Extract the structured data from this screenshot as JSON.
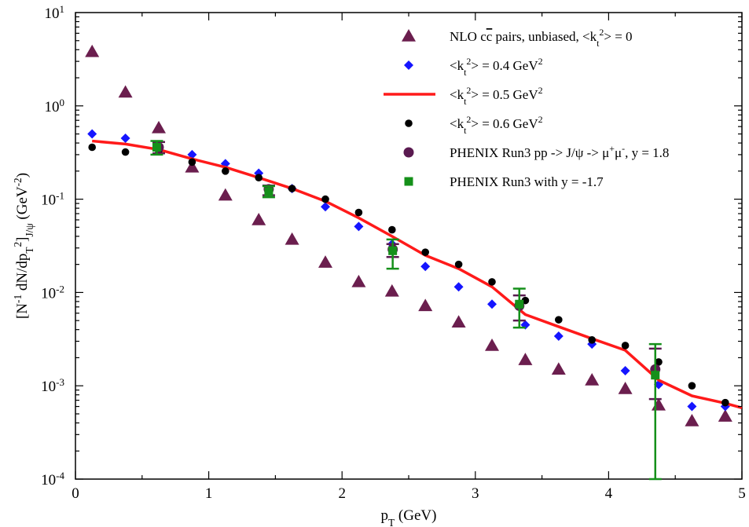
{
  "chart_data": {
    "type": "scatter",
    "xlabel": "pT (GeV)",
    "ylabel": "[N-1 dN/dpT2]J/ψ (GeV-2)",
    "xlim": [
      0,
      5
    ],
    "ylim": [
      0.0001,
      10
    ],
    "y_scale": "log",
    "grid": false,
    "legend_position": "top-right",
    "x_ticks": [
      0,
      1,
      2,
      3,
      4,
      5
    ],
    "y_ticks": [
      0.0001,
      0.001,
      0.01,
      0.1,
      1,
      10
    ],
    "x_tick_labels": [
      "0",
      "1",
      "2",
      "3",
      "4",
      "5"
    ],
    "y_tick_labels": [
      {
        "base": "10",
        "exp": "-4"
      },
      {
        "base": "10",
        "exp": "-3"
      },
      {
        "base": "10",
        "exp": "-2"
      },
      {
        "base": "10",
        "exp": "-1"
      },
      {
        "base": "10",
        "exp": "0"
      },
      {
        "base": "10",
        "exp": "1"
      }
    ],
    "series": [
      {
        "name": "NLO cc̄ pairs, unbiased, <kt2> = 0",
        "marker": "triangle",
        "color": "#6b1e4e",
        "x": [
          0.125,
          0.375,
          0.625,
          0.875,
          1.125,
          1.375,
          1.625,
          1.875,
          2.125,
          2.375,
          2.625,
          2.875,
          3.125,
          3.375,
          3.625,
          3.875,
          4.125,
          4.375,
          4.625,
          4.875
        ],
        "y": [
          3.8,
          1.4,
          0.58,
          0.22,
          0.11,
          0.06,
          0.037,
          0.021,
          0.013,
          0.0103,
          0.0072,
          0.0048,
          0.0027,
          0.0019,
          0.0015,
          0.00115,
          0.00093,
          0.00062,
          0.00042,
          0.00047
        ]
      },
      {
        "name": "<kt2> = 0.4 GeV2",
        "marker": "diamond",
        "color": "#1515ff",
        "x": [
          0.125,
          0.375,
          0.625,
          0.875,
          1.125,
          1.375,
          1.625,
          1.875,
          2.125,
          2.375,
          2.625,
          2.875,
          3.125,
          3.375,
          3.625,
          3.875,
          4.125,
          4.375,
          4.625,
          4.875
        ],
        "y": [
          0.5,
          0.45,
          0.36,
          0.3,
          0.24,
          0.19,
          0.13,
          0.083,
          0.051,
          0.033,
          0.019,
          0.0115,
          0.0075,
          0.0045,
          0.0034,
          0.0028,
          0.00145,
          0.00103,
          0.0006,
          0.0006
        ]
      },
      {
        "name": "<kt2> = 0.5 GeV2",
        "marker": "line",
        "color": "#ff1a1a",
        "x": [
          0.125,
          0.375,
          0.625,
          0.875,
          1.125,
          1.375,
          1.625,
          1.875,
          2.125,
          2.375,
          2.625,
          2.875,
          3.125,
          3.375,
          3.625,
          3.875,
          4.125,
          4.375,
          4.625,
          4.875,
          5.0
        ],
        "y": [
          0.42,
          0.39,
          0.34,
          0.27,
          0.22,
          0.17,
          0.13,
          0.095,
          0.063,
          0.04,
          0.025,
          0.018,
          0.0115,
          0.0058,
          0.0043,
          0.0032,
          0.0024,
          0.00115,
          0.00078,
          0.00065,
          0.00058
        ]
      },
      {
        "name": "<kt2> = 0.6 GeV2",
        "marker": "circle-small",
        "color": "#000000",
        "x": [
          0.125,
          0.375,
          0.625,
          0.875,
          1.125,
          1.375,
          1.625,
          1.875,
          2.125,
          2.375,
          2.625,
          2.875,
          3.125,
          3.375,
          3.625,
          3.875,
          4.125,
          4.375,
          4.625,
          4.875
        ],
        "y": [
          0.36,
          0.32,
          0.33,
          0.25,
          0.2,
          0.17,
          0.13,
          0.1,
          0.072,
          0.047,
          0.027,
          0.02,
          0.013,
          0.0082,
          0.0051,
          0.0031,
          0.0027,
          0.0018,
          0.001,
          0.00066
        ]
      },
      {
        "name": "PHENIX Run3 pp -> J/ψ -> μ+μ-, y = 1.8",
        "marker": "circle-large",
        "color": "#5a1a50",
        "x": [
          0.625,
          1.45,
          2.38,
          3.33,
          4.35
        ],
        "y": [
          0.36,
          0.128,
          0.029,
          0.0072,
          0.0015
        ],
        "y_low": [
          0.31,
          0.11,
          0.024,
          0.005,
          0.00072
        ],
        "y_high": [
          0.41,
          0.14,
          0.033,
          0.0093,
          0.0025
        ]
      },
      {
        "name": "PHENIX Run3 with y = -1.7",
        "marker": "square",
        "color": "#15901a",
        "x": [
          0.61,
          1.45,
          2.38,
          3.33,
          4.35
        ],
        "y": [
          0.36,
          0.12,
          0.028,
          0.0075,
          0.0013
        ],
        "y_low": [
          0.3,
          0.105,
          0.018,
          0.0042,
          0.0001
        ],
        "y_high": [
          0.42,
          0.138,
          0.037,
          0.011,
          0.0028
        ]
      }
    ]
  },
  "axis_titles": {
    "x": {
      "p": "p",
      "sub": "T",
      "rest": " (GeV)"
    },
    "y": {
      "a": "[N",
      "a_sup": "-1",
      "b": " dN/dp",
      "b_sub": "T",
      "b_sup": "2",
      "c": "]",
      "c_sub": "J/ψ",
      "d": " (GeV",
      "d_sup": "-2",
      "e": ")"
    }
  },
  "legend": [
    {
      "series": 0,
      "parts": [
        [
          "t",
          "NLO c"
        ],
        [
          "t",
          "c"
        ],
        [
          "t",
          " pairs, unbiased, <k"
        ],
        [
          "sub",
          "t"
        ],
        [
          "sup",
          "2"
        ],
        [
          "t",
          "> = 0"
        ]
      ],
      "overline_part": 1
    },
    {
      "series": 1,
      "parts": [
        [
          "t",
          "<k"
        ],
        [
          "sub",
          "t"
        ],
        [
          "sup",
          "2"
        ],
        [
          "t",
          "> = 0.4 GeV"
        ],
        [
          "sup",
          "2"
        ]
      ]
    },
    {
      "series": 2,
      "parts": [
        [
          "t",
          "<k"
        ],
        [
          "sub",
          "t"
        ],
        [
          "sup",
          "2"
        ],
        [
          "t",
          "> = 0.5 GeV"
        ],
        [
          "sup",
          "2"
        ]
      ]
    },
    {
      "series": 3,
      "parts": [
        [
          "t",
          "<k"
        ],
        [
          "sub",
          "t"
        ],
        [
          "sup",
          "2"
        ],
        [
          "t",
          "> = 0.6 GeV"
        ],
        [
          "sup",
          "2"
        ]
      ]
    },
    {
      "series": 4,
      "parts": [
        [
          "t",
          "PHENIX Run3 pp -> J/ψ -> μ"
        ],
        [
          "sup",
          "+"
        ],
        [
          "t",
          "μ"
        ],
        [
          "sup",
          "-"
        ],
        [
          "t",
          ", y = 1.8"
        ]
      ]
    },
    {
      "series": 5,
      "parts": [
        [
          "t",
          "PHENIX Run3 with y = -1.7"
        ]
      ]
    }
  ]
}
